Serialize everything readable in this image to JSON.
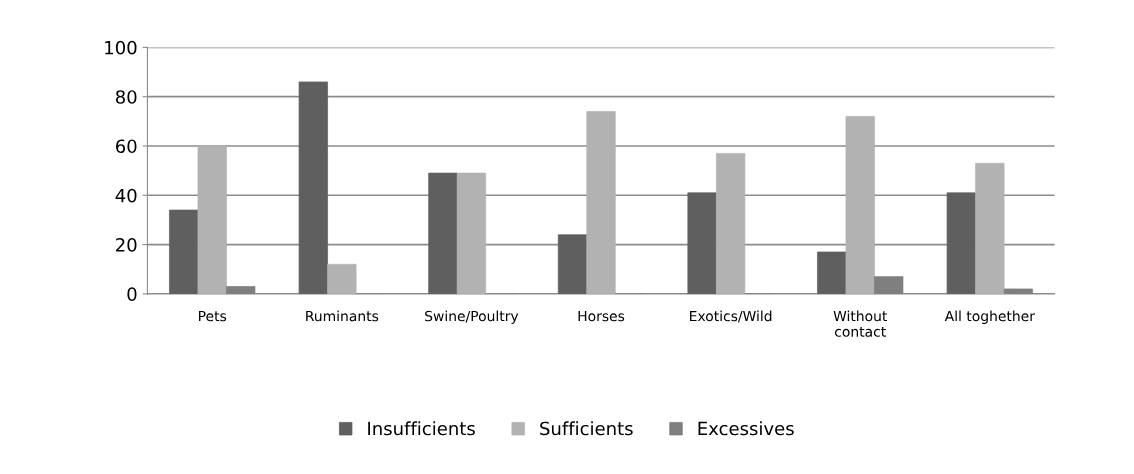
{
  "chart_data": {
    "type": "bar",
    "categories": [
      "Pets",
      "Ruminants",
      "Swine/Poultry",
      "Horses",
      "Exotics/Wild",
      "Without\ncontact",
      "All toghether"
    ],
    "series": [
      {
        "name": "Insufficients",
        "color": "#5f5f5f",
        "values": [
          34,
          86,
          49,
          24,
          41,
          17,
          41
        ]
      },
      {
        "name": "Sufficients",
        "color": "#b2b2b2",
        "values": [
          60,
          12,
          49,
          74,
          57,
          72,
          53
        ]
      },
      {
        "name": "Excessives",
        "color": "#7f7f7f",
        "values": [
          3,
          0,
          0,
          0,
          0,
          7,
          2
        ]
      }
    ],
    "ylim": [
      0,
      100
    ],
    "yticks": [
      0,
      20,
      40,
      60,
      80,
      100
    ],
    "grid": "y",
    "legend": "bottom"
  }
}
